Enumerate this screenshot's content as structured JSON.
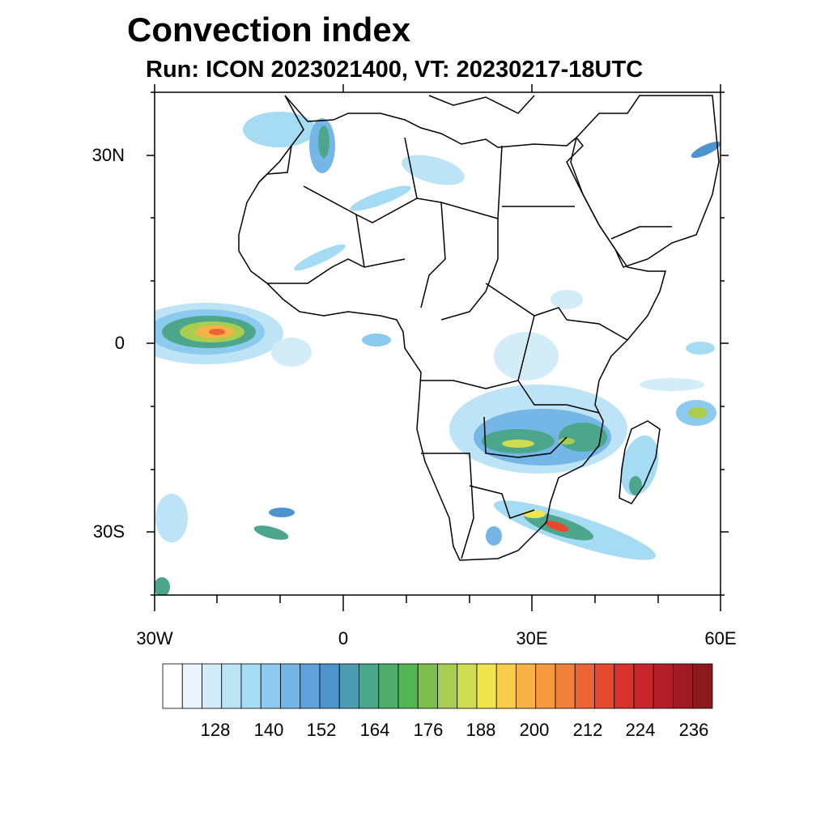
{
  "title": "Convection index",
  "subtitle": "Run: ICON 2023021400,  VT: 20230217-18UTC",
  "map": {
    "lon_range": [
      -30,
      60
    ],
    "lat_range": [
      -40,
      40
    ],
    "lat_ticks": [
      "30N",
      "0",
      "30S"
    ],
    "lon_ticks": [
      "30W",
      "0",
      "30E",
      "60E"
    ]
  },
  "colorbar": {
    "labels": [
      "128",
      "140",
      "152",
      "164",
      "176",
      "188",
      "200",
      "212",
      "224",
      "236"
    ],
    "colors": [
      "#ffffff",
      "#eaf6fc",
      "#d2ecf8",
      "#bde4f6",
      "#a5dcf4",
      "#8ccbef",
      "#74b7e6",
      "#5ea3dc",
      "#4d94cf",
      "#4d9bb0",
      "#4ba68c",
      "#4cae6a",
      "#53b653",
      "#7dbf4e",
      "#a8cd4f",
      "#cfde50",
      "#f1e54f",
      "#f7cd49",
      "#f8b246",
      "#f69a40",
      "#f2803a",
      "#ed6434",
      "#e6492f",
      "#d9322d",
      "#c8252c",
      "#b41e2a",
      "#a11b26",
      "#8b1a1f"
    ]
  }
}
